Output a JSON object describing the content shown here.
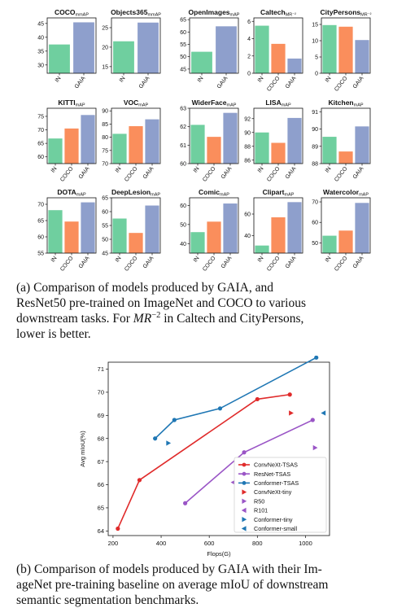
{
  "colors": {
    "IN": "#6fcf9f",
    "COCO": "#fa8e5c",
    "GAIA": "#8e9fcc"
  },
  "figure_a": {
    "chart_data": [
      {
        "type": "bar",
        "title": "COCO",
        "title_sub": "mmAP",
        "categories": [
          "IN",
          "GAIA"
        ],
        "values": [
          37.4,
          45.4
        ],
        "ylim": [
          27,
          47
        ],
        "yticks": [
          30,
          35,
          40,
          45
        ]
      },
      {
        "type": "bar",
        "title": "Objects365",
        "title_sub": "mmAP",
        "categories": [
          "IN",
          "GAIA"
        ],
        "values": [
          21.5,
          26.3
        ],
        "ylim": [
          13.3,
          27.5
        ],
        "yticks": [
          15,
          20,
          25
        ]
      },
      {
        "type": "bar",
        "title": "OpenImages",
        "title_sub": "mAP",
        "categories": [
          "IN",
          "GAIA"
        ],
        "values": [
          52.0,
          62.3
        ],
        "ylim": [
          43.3,
          65.7
        ],
        "yticks": [
          45,
          50,
          55,
          60,
          65
        ]
      },
      {
        "type": "bar",
        "title": "Caltech",
        "title_sub": "MR⁻²",
        "categories": [
          "IN",
          "COCO",
          "GAIA"
        ],
        "values": [
          5.5,
          3.4,
          1.7
        ],
        "ylim": [
          0,
          6.4
        ],
        "yticks": [
          0,
          2,
          4,
          6
        ]
      },
      {
        "type": "bar",
        "title": "CityPersons",
        "title_sub": "MR⁻²",
        "categories": [
          "IN",
          "COCO",
          "GAIA"
        ],
        "values": [
          14.8,
          14.3,
          10.2
        ],
        "ylim": [
          0,
          17
        ],
        "yticks": [
          0,
          5,
          10,
          15
        ]
      },
      {
        "type": "bar",
        "title": "KITTI",
        "title_sub": "mAP",
        "categories": [
          "IN",
          "COCO",
          "GAIA"
        ],
        "values": [
          66.8,
          70.5,
          75.5
        ],
        "ylim": [
          57.5,
          78
        ],
        "yticks": [
          60,
          65,
          70,
          75
        ]
      },
      {
        "type": "bar",
        "title": "VOC",
        "title_sub": "mAP",
        "categories": [
          "IN",
          "COCO",
          "GAIA"
        ],
        "values": [
          81.3,
          84.2,
          86.8
        ],
        "ylim": [
          70,
          91
        ],
        "yticks": [
          70,
          75,
          80,
          85,
          90
        ]
      },
      {
        "type": "bar",
        "title": "WiderFace",
        "title_sub": "mAP",
        "categories": [
          "IN",
          "COCO",
          "GAIA"
        ],
        "values": [
          62.1,
          61.45,
          62.75
        ],
        "ylim": [
          60,
          63
        ],
        "yticks": [
          60,
          61,
          62,
          63
        ]
      },
      {
        "type": "bar",
        "title": "LISA",
        "title_sub": "mAP",
        "categories": [
          "IN",
          "COCO",
          "GAIA"
        ],
        "values": [
          90.0,
          88.5,
          92.1
        ],
        "ylim": [
          85.5,
          93.5
        ],
        "yticks": [
          86,
          88,
          90,
          92
        ]
      },
      {
        "type": "bar",
        "title": "Kitchen",
        "title_sub": "mAP",
        "categories": [
          "IN",
          "COCO",
          "GAIA"
        ],
        "values": [
          89.55,
          88.7,
          90.15
        ],
        "ylim": [
          88,
          91.2
        ],
        "yticks": [
          88,
          89,
          90,
          91
        ]
      },
      {
        "type": "bar",
        "title": "DOTA",
        "title_sub": "mAP",
        "categories": [
          "IN",
          "COCO",
          "GAIA"
        ],
        "values": [
          68.2,
          64.7,
          70.6
        ],
        "ylim": [
          55,
          72
        ],
        "yticks": [
          55,
          60,
          65,
          70
        ]
      },
      {
        "type": "bar",
        "title": "DeepLesion",
        "title_sub": "mAP",
        "categories": [
          "IN",
          "COCO",
          "GAIA"
        ],
        "values": [
          57.5,
          52.3,
          62.2
        ],
        "ylim": [
          45,
          65
        ],
        "yticks": [
          45,
          50,
          55,
          60,
          65
        ]
      },
      {
        "type": "bar",
        "title": "Comic",
        "title_sub": "mAP",
        "categories": [
          "IN",
          "COCO",
          "GAIA"
        ],
        "values": [
          46.0,
          51.5,
          61.0
        ],
        "ylim": [
          35,
          64
        ],
        "yticks": [
          40,
          50,
          60
        ]
      },
      {
        "type": "bar",
        "title": "Clipart",
        "title_sub": "mAP",
        "categories": [
          "IN",
          "COCO",
          "GAIA"
        ],
        "values": [
          31.0,
          57.0,
          71.0
        ],
        "ylim": [
          24,
          75
        ],
        "yticks": [
          40,
          60
        ]
      },
      {
        "type": "bar",
        "title": "Watercolor",
        "title_sub": "mAP",
        "categories": [
          "IN",
          "COCO",
          "GAIA"
        ],
        "values": [
          53.5,
          56.0,
          69.5
        ],
        "ylim": [
          45,
          72
        ],
        "yticks": [
          50,
          60,
          70
        ]
      }
    ]
  },
  "caption_a": {
    "line1": "(a) Comparison of models produced by GAIA, and",
    "line2": "ResNet50 pre-trained on ImageNet and COCO to various",
    "line3_pre": "downstream tasks. For",
    "line3_math": "MR",
    "line3_sup": "−2",
    "line3_post": "in Caltech and CityPersons,",
    "line4": "lower is better."
  },
  "figure_b": {
    "chart_data": {
      "type": "line",
      "xlabel": "Flops(G)",
      "ylabel": "Avg mIoU(%)",
      "xlim": [
        180,
        1100
      ],
      "ylim": [
        63.8,
        71.3
      ],
      "xticks": [
        200,
        400,
        600,
        800,
        1000
      ],
      "yticks": [
        64,
        65,
        66,
        67,
        68,
        69,
        70,
        71
      ],
      "legend_position": "lower-right",
      "series": [
        {
          "name": "ConvNeXt-TSAS",
          "kind": "line",
          "color": "#e02b2b",
          "x": [
            220,
            310,
            800,
            935
          ],
          "y": [
            64.1,
            66.2,
            69.7,
            69.9
          ]
        },
        {
          "name": "ResNet-TSAS",
          "kind": "line",
          "color": "#9a55c6",
          "x": [
            500,
            745,
            1030
          ],
          "y": [
            65.2,
            67.4,
            68.8
          ]
        },
        {
          "name": "Conformer-TSAS",
          "kind": "line",
          "color": "#1f77b4",
          "x": [
            375,
            455,
            645,
            1045
          ],
          "y": [
            68.0,
            68.8,
            69.3,
            71.5
          ]
        },
        {
          "name": "ConvNeXt-tiny",
          "kind": "marker",
          "marker": "triangle-right",
          "color": "#e02b2b",
          "x": [
            940
          ],
          "y": [
            69.1
          ]
        },
        {
          "name": "R50",
          "kind": "marker",
          "marker": "triangle-right",
          "color": "#9a55c6",
          "x": [
            1040
          ],
          "y": [
            67.6
          ]
        },
        {
          "name": "R101",
          "kind": "marker",
          "marker": "triangle-left",
          "color": "#9a55c6",
          "x": [
            700
          ],
          "y": [
            66.1
          ]
        },
        {
          "name": "Conformer-tiny",
          "kind": "marker",
          "marker": "triangle-right",
          "color": "#1f77b4",
          "x": [
            430
          ],
          "y": [
            67.8
          ]
        },
        {
          "name": "Conformer-small",
          "kind": "marker",
          "marker": "triangle-left",
          "color": "#1f77b4",
          "x": [
            1075
          ],
          "y": [
            69.1
          ]
        }
      ]
    }
  },
  "caption_b": {
    "line1": "(b) Comparison of models produced by GAIA with their Im-",
    "line2": "ageNet pre-training baseline on average mIoU of downstream",
    "line3": "semantic segmentation benchmarks."
  }
}
